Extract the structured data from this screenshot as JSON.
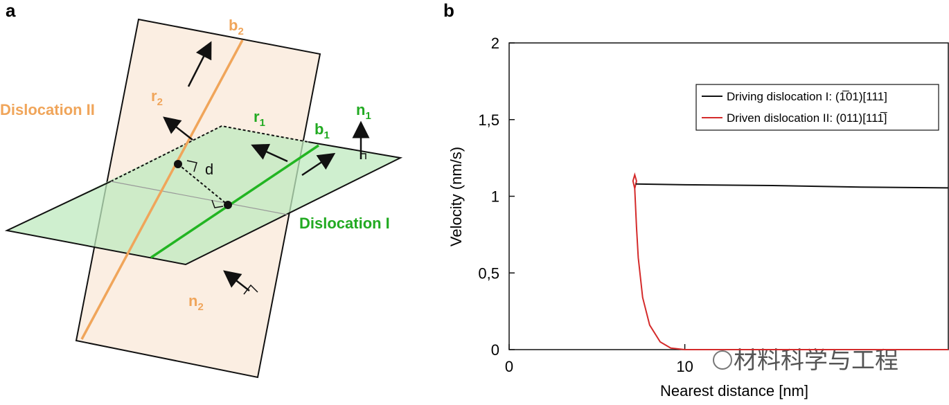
{
  "diagram": {
    "panel_label": "a",
    "labels": [
      {
        "text": "b",
        "sub": "2"
      },
      {
        "text": "r",
        "sub": "2"
      },
      {
        "text": "Dislocation II"
      },
      {
        "text": "r",
        "sub": "1"
      },
      {
        "text": "n",
        "sub": "1"
      },
      {
        "text": "b",
        "sub": "1"
      },
      {
        "text": "d"
      },
      {
        "text": "Dislocation I"
      },
      {
        "text": "n",
        "sub": "2"
      }
    ]
  },
  "chart_data": {
    "type": "line",
    "panel_label": "b",
    "xlabel": "Nearest distance [nm]",
    "ylabel": "Velocity (nm/s)",
    "xlim": [
      0,
      25
    ],
    "ylim": [
      0,
      2
    ],
    "xticks": [
      0,
      10
    ],
    "yticks": [
      0,
      {
        "value": 0.5,
        "label": "0,5"
      },
      1,
      {
        "value": 1.5,
        "label": "1,5"
      },
      2
    ],
    "legend": "upper right",
    "series": [
      {
        "name": "Driving dislocation I: (1̅01)[111]",
        "color": "#111111",
        "x": [
          7.2,
          10,
          15,
          20,
          25
        ],
        "values": [
          1.08,
          1.075,
          1.07,
          1.06,
          1.055
        ]
      },
      {
        "name": "Driven dislocation II: (011)[111̅]",
        "color": "#d42a2a",
        "x": [
          7.15,
          7.05,
          7.15,
          7.25,
          7.15,
          7.25,
          7.35,
          7.6,
          8.0,
          8.6,
          9.2,
          10,
          25
        ],
        "values": [
          1.05,
          1.1,
          1.14,
          1.1,
          1.05,
          0.8,
          0.6,
          0.34,
          0.16,
          0.05,
          0.01,
          0,
          0
        ]
      }
    ]
  },
  "watermark": "材料科学与工程"
}
